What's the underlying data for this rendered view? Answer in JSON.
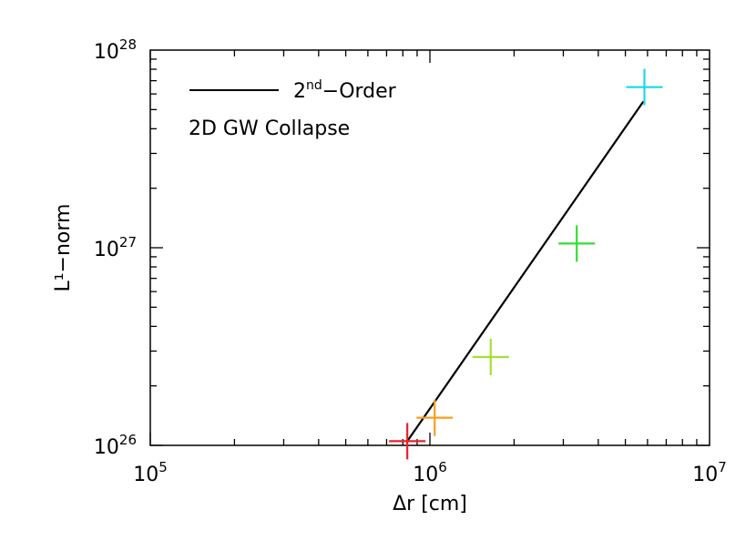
{
  "chart_data": {
    "type": "scatter",
    "xlabel": "Δr [cm]",
    "ylabel": "L¹−norm",
    "xscale": "log",
    "yscale": "log",
    "xlim": [
      100000,
      10000000
    ],
    "ylim": [
      1e+26,
      1e+28
    ],
    "x_ticks": [
      {
        "value": 100000,
        "base": "10",
        "exp": "5"
      },
      {
        "value": 1000000,
        "base": "10",
        "exp": "6"
      },
      {
        "value": 10000000,
        "base": "10",
        "exp": "7"
      }
    ],
    "y_ticks": [
      {
        "value": 1e+26,
        "base": "10",
        "exp": "26"
      },
      {
        "value": 1e+27,
        "base": "10",
        "exp": "27"
      },
      {
        "value": 1e+28,
        "base": "10",
        "exp": "28"
      }
    ],
    "grid": false,
    "legend": {
      "position": "top-left",
      "line_label_base": "2",
      "line_label_sup": "nd",
      "line_label_rest": "−Order",
      "annotation": "2D GW Collapse"
    },
    "fit_line": {
      "name": "2nd-Order",
      "color": "#000000",
      "points": [
        {
          "x": 830000,
          "y": 1.05e+26
        },
        {
          "x": 5800000,
          "y": 5.5e+27
        }
      ]
    },
    "points": [
      {
        "x": 830000,
        "y": 1.05e+26,
        "color": "#e8202a"
      },
      {
        "x": 1040000,
        "y": 1.38e+26,
        "color": "#f5a020"
      },
      {
        "x": 1650000,
        "y": 2.8e+26,
        "color": "#a8e030"
      },
      {
        "x": 3350000,
        "y": 1.05e+27,
        "color": "#30e030"
      },
      {
        "x": 5850000,
        "y": 6.5e+27,
        "color": "#20d8e8"
      }
    ]
  }
}
